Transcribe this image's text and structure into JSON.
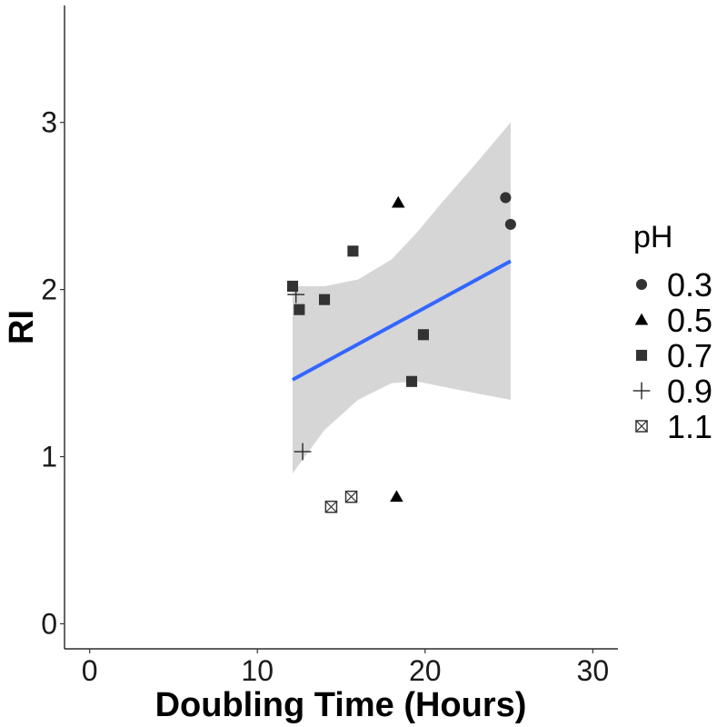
{
  "chart_data": {
    "type": "scatter",
    "title": "",
    "xlabel": "Doubling Time (Hours)",
    "ylabel": "RI",
    "xlim": [
      -1.5,
      31.5
    ],
    "ylim": [
      -0.15,
      3.7
    ],
    "x_ticks": [
      0,
      10,
      20,
      30
    ],
    "y_ticks": [
      0,
      1,
      2,
      3
    ],
    "grid": false,
    "legend": {
      "title": "pH",
      "position": "right",
      "entries": [
        {
          "label": "0.3",
          "shape": "circle"
        },
        {
          "label": "0.5",
          "shape": "triangle"
        },
        {
          "label": "0.7",
          "shape": "square"
        },
        {
          "label": "0.9",
          "shape": "plus"
        },
        {
          "label": "1.1",
          "shape": "boxed-x"
        }
      ]
    },
    "series": [
      {
        "name": "0.3",
        "shape": "circle",
        "points": [
          [
            24.8,
            2.55
          ],
          [
            25.1,
            2.39
          ]
        ]
      },
      {
        "name": "0.5",
        "shape": "triangle",
        "points": [
          [
            18.4,
            2.52
          ],
          [
            18.3,
            0.76
          ]
        ]
      },
      {
        "name": "0.7",
        "shape": "square",
        "points": [
          [
            15.7,
            2.23
          ],
          [
            12.1,
            2.02
          ],
          [
            12.5,
            1.88
          ],
          [
            14.0,
            1.94
          ],
          [
            19.9,
            1.73
          ],
          [
            19.2,
            1.45
          ]
        ]
      },
      {
        "name": "0.9",
        "shape": "plus",
        "points": [
          [
            12.3,
            1.97
          ],
          [
            12.7,
            1.03
          ]
        ]
      },
      {
        "name": "1.1",
        "shape": "boxed-x",
        "points": [
          [
            14.4,
            0.7
          ],
          [
            15.6,
            0.76
          ]
        ]
      }
    ],
    "fit": {
      "method": "linear",
      "color": "#3366ff",
      "band_color": "#d6d6d6",
      "x": [
        12.1,
        25.1
      ],
      "y": [
        1.46,
        2.17
      ],
      "band": [
        {
          "x": 12.1,
          "lower": 0.9,
          "upper": 2.02
        },
        {
          "x": 14.0,
          "lower": 1.16,
          "upper": 2.02
        },
        {
          "x": 16.0,
          "lower": 1.34,
          "upper": 2.06
        },
        {
          "x": 18.0,
          "lower": 1.44,
          "upper": 2.18
        },
        {
          "x": 19.5,
          "lower": 1.45,
          "upper": 2.34
        },
        {
          "x": 21.0,
          "lower": 1.42,
          "upper": 2.52
        },
        {
          "x": 23.0,
          "lower": 1.38,
          "upper": 2.75
        },
        {
          "x": 25.1,
          "lower": 1.34,
          "upper": 3.0
        }
      ]
    },
    "colors": {
      "point": "#333333",
      "triangle": "#000000",
      "text": "#1a1a1a"
    }
  }
}
